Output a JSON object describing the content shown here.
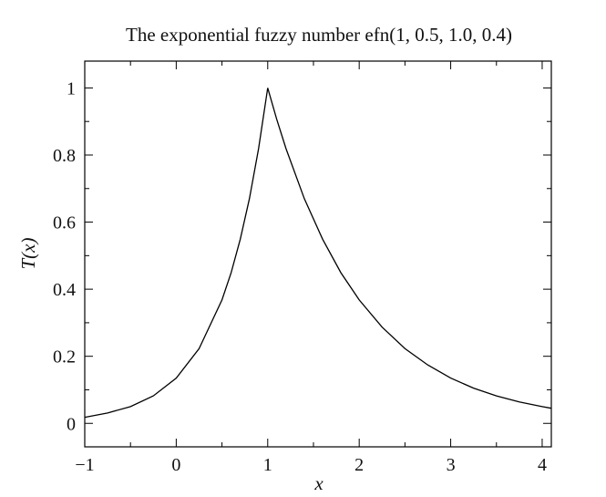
{
  "chart_data": {
    "type": "line",
    "title": "The exponential fuzzy number efn(1, 0.5, 1.0, 0.4)",
    "xlabel": "x",
    "ylabel": "T(x)",
    "xlim": [
      -1,
      4.1
    ],
    "ylim": [
      -0.07,
      1.08
    ],
    "x_ticks": [
      -1,
      0,
      1,
      2,
      3,
      4
    ],
    "x_tick_labels": [
      "−1",
      "0",
      "1",
      "2",
      "3",
      "4"
    ],
    "y_ticks": [
      0,
      0.2,
      0.4,
      0.6,
      0.8,
      1
    ],
    "y_tick_labels": [
      "0",
      "0.2",
      "0.4",
      "0.6",
      "0.8",
      "1"
    ],
    "grid": false,
    "legend": "none",
    "series": [
      {
        "x": [
          -1,
          -0.75,
          -0.5,
          -0.25,
          0,
          0.25,
          0.5,
          0.6,
          0.7,
          0.8,
          0.9,
          1.0,
          1.1,
          1.2,
          1.4,
          1.6,
          1.8,
          2.0,
          2.25,
          2.5,
          2.75,
          3.0,
          3.25,
          3.5,
          3.75,
          4.0,
          4.1
        ],
        "y": [
          0.018,
          0.031,
          0.05,
          0.082,
          0.135,
          0.223,
          0.368,
          0.449,
          0.549,
          0.67,
          0.819,
          1.0,
          0.905,
          0.819,
          0.67,
          0.549,
          0.449,
          0.368,
          0.287,
          0.223,
          0.174,
          0.135,
          0.105,
          0.082,
          0.064,
          0.05,
          0.045
        ]
      }
    ]
  }
}
